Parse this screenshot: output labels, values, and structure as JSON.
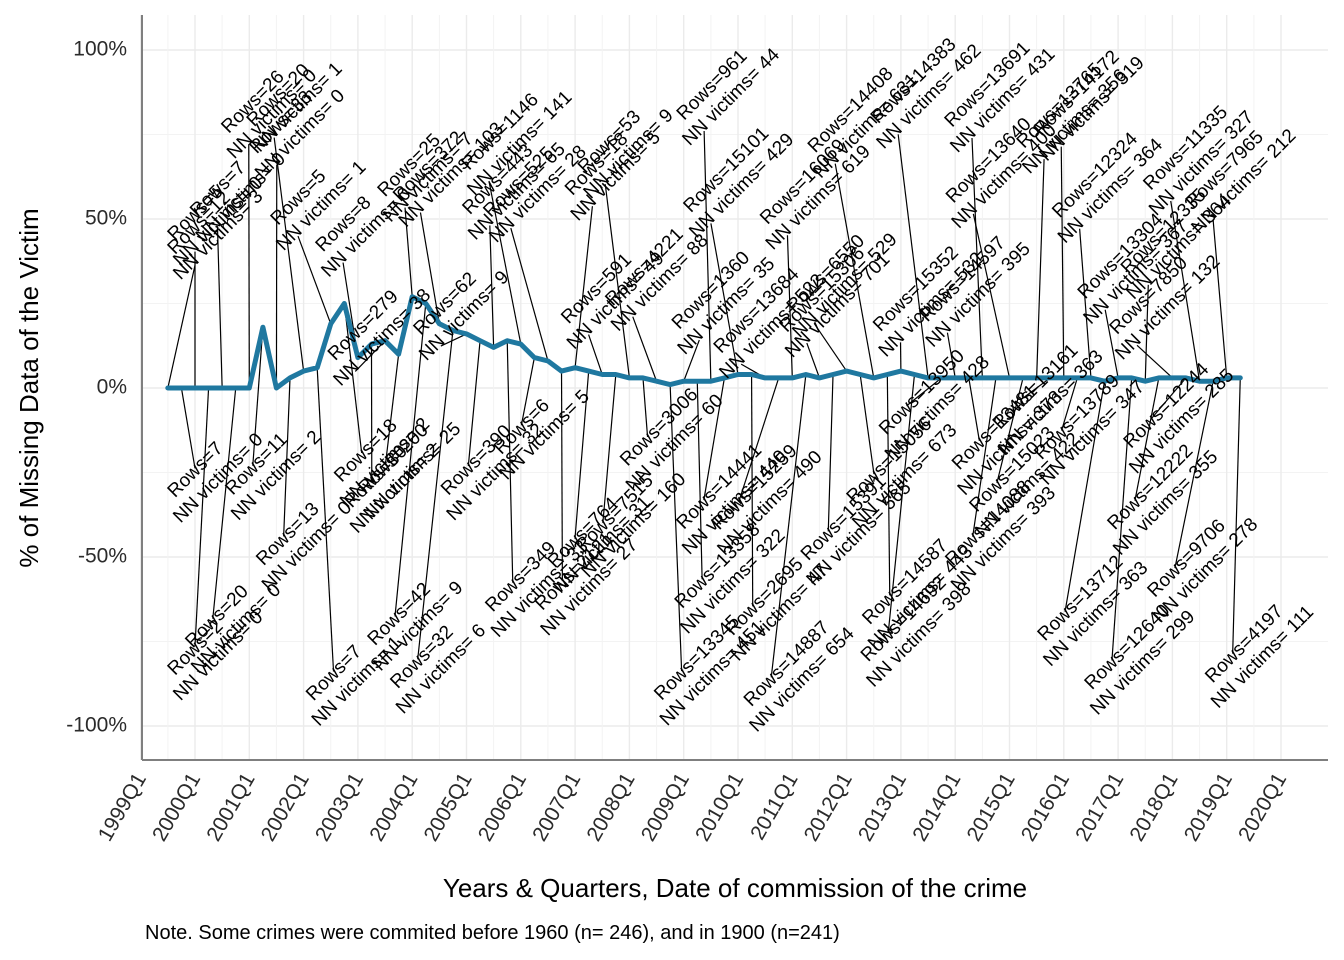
{
  "chart_data": {
    "type": "line",
    "title": "",
    "xlabel": "Years & Quarters, Date of commission of the crime",
    "ylabel": "% of Missing Data of the Victim",
    "note": "Note. Some crimes were commited before 1960 (n= 246), and in 1900 (n=241)",
    "y_ticks": [
      "100%",
      "50%",
      "0%",
      "-50%",
      "-100%"
    ],
    "y_tick_values": [
      100,
      50,
      0,
      -50,
      -100
    ],
    "ylim": [
      -110,
      110
    ],
    "x_tick_labels": [
      "1999Q1",
      "2000Q1",
      "2001Q1",
      "2002Q1",
      "2003Q1",
      "2004Q1",
      "2005Q1",
      "2006Q1",
      "2007Q1",
      "2008Q1",
      "2009Q1",
      "2010Q1",
      "2011Q1",
      "2012Q1",
      "2013Q1",
      "2014Q1",
      "2015Q1",
      "2016Q1",
      "2017Q1",
      "2018Q1",
      "2019Q1",
      "2020Q1"
    ],
    "xlim": [
      1998.75,
      2020.25
    ],
    "grid": true,
    "series": [
      {
        "color": "#1f78a0",
        "points": [
          {
            "x": 1999.5,
            "y": 0,
            "rows": "12",
            "nn": "3"
          },
          {
            "x": 1999.75,
            "y": 0,
            "rows": "7",
            "nn": "0"
          },
          {
            "x": 2000.0,
            "y": 0,
            "rows": "5",
            "nn": "0"
          },
          {
            "x": 2000.25,
            "y": 0,
            "rows": "2",
            "nn": "0"
          },
          {
            "x": 2000.5,
            "y": 0,
            "rows": "7",
            "nn": "0"
          },
          {
            "x": 2000.75,
            "y": 0,
            "rows": "20",
            "nn": "0"
          },
          {
            "x": 2001.0,
            "y": 0,
            "rows": "26",
            "nn": "0"
          },
          {
            "x": 2001.25,
            "y": 18,
            "rows": "11",
            "nn": "2"
          },
          {
            "x": 2001.5,
            "y": 0,
            "rows": "33",
            "nn": "0"
          },
          {
            "x": 2001.75,
            "y": 3,
            "rows": "13",
            "nn": "0"
          },
          {
            "x": 2002.0,
            "y": 5,
            "rows": "20",
            "nn": "1"
          },
          {
            "x": 2002.25,
            "y": 6,
            "rows": "7",
            "nn": "1"
          },
          {
            "x": 2002.5,
            "y": 19,
            "rows": "5",
            "nn": "1"
          },
          {
            "x": 2002.75,
            "y": 25,
            "rows": "18",
            "nn": "2"
          },
          {
            "x": 2003.0,
            "y": 9,
            "rows": "8",
            "nn": "0"
          },
          {
            "x": 2003.25,
            "y": 13,
            "rows": "30",
            "nn": "2"
          },
          {
            "x": 2003.5,
            "y": 14,
            "rows": "279",
            "nn": "38"
          },
          {
            "x": 2003.75,
            "y": 10,
            "rows": "200",
            "nn": "25"
          },
          {
            "x": 2004.0,
            "y": 27,
            "rows": "25",
            "nn": "7"
          },
          {
            "x": 2004.25,
            "y": 25,
            "rows": "42",
            "nn": "9"
          },
          {
            "x": 2004.5,
            "y": 19,
            "rows": "372",
            "nn": "103"
          },
          {
            "x": 2004.75,
            "y": 17,
            "rows": "32",
            "nn": "6"
          },
          {
            "x": 2005.0,
            "y": 16,
            "rows": "62",
            "nn": "9"
          },
          {
            "x": 2005.25,
            "y": 14,
            "rows": "390",
            "nn": "32"
          },
          {
            "x": 2005.5,
            "y": 12,
            "rows": "443",
            "nn": "65"
          },
          {
            "x": 2005.75,
            "y": 14,
            "rows": "349",
            "nn": "33"
          },
          {
            "x": 2006.0,
            "y": 13,
            "rows": "1146",
            "nn": "141"
          },
          {
            "x": 2006.25,
            "y": 9,
            "rows": "6",
            "nn": "5"
          },
          {
            "x": 2006.5,
            "y": 8,
            "rows": "525",
            "nn": "28"
          },
          {
            "x": 2006.75,
            "y": 5,
            "rows": "2121",
            "nn": "27"
          },
          {
            "x": 2007.0,
            "y": 6,
            "rows": "18",
            "nn": "5"
          },
          {
            "x": 2007.25,
            "y": 5,
            "rows": "764",
            "nn": "31"
          },
          {
            "x": 2007.5,
            "y": 4,
            "rows": "591",
            "nn": "49"
          },
          {
            "x": 2007.75,
            "y": 4,
            "rows": "7515",
            "nn": "160"
          },
          {
            "x": 2008.0,
            "y": 3,
            "rows": "53",
            "nn": "9"
          },
          {
            "x": 2008.25,
            "y": 3,
            "rows": "3006",
            "nn": "60"
          },
          {
            "x": 2008.5,
            "y": 2,
            "rows": "4221",
            "nn": "88"
          },
          {
            "x": 2008.75,
            "y": 1,
            "rows": "13345",
            "nn": "451"
          },
          {
            "x": 2009.0,
            "y": 2,
            "rows": "1360",
            "nn": "35"
          },
          {
            "x": 2009.25,
            "y": 2,
            "rows": "13358",
            "nn": "322"
          },
          {
            "x": 2009.5,
            "y": 2,
            "rows": "961",
            "nn": "44"
          },
          {
            "x": 2009.75,
            "y": 3,
            "rows": "14441",
            "nn": "440"
          },
          {
            "x": 2010.0,
            "y": 4,
            "rows": "15101",
            "nn": "429"
          },
          {
            "x": 2010.25,
            "y": 4,
            "rows": "2695",
            "nn": "47"
          },
          {
            "x": 2010.5,
            "y": 3,
            "rows": "13684",
            "nn": "522"
          },
          {
            "x": 2010.75,
            "y": 3,
            "rows": "15259",
            "nn": "490"
          },
          {
            "x": 2011.0,
            "y": 3,
            "rows": "16069",
            "nn": "619"
          },
          {
            "x": 2011.25,
            "y": 4,
            "rows": "14887",
            "nn": "654"
          },
          {
            "x": 2011.5,
            "y": 3,
            "rows": "15306",
            "nn": "701"
          },
          {
            "x": 2011.75,
            "y": 4,
            "rows": "15391",
            "nn": "565"
          },
          {
            "x": 2012.0,
            "y": 5,
            "rows": "6550",
            "nn": "529"
          },
          {
            "x": 2012.25,
            "y": 4,
            "rows": "15056",
            "nn": "673"
          },
          {
            "x": 2012.5,
            "y": 3,
            "rows": "14408",
            "nn": "631"
          },
          {
            "x": 2012.75,
            "y": 4,
            "rows": "14587",
            "nn": "443"
          },
          {
            "x": 2013.0,
            "y": 5,
            "rows": "15352",
            "nn": "532"
          },
          {
            "x": 2013.25,
            "y": 4,
            "rows": "14692",
            "nn": "398"
          },
          {
            "x": 2013.5,
            "y": 3,
            "rows": "14383",
            "nn": "462"
          },
          {
            "x": 2013.75,
            "y": 3,
            "rows": "13950",
            "nn": "428"
          },
          {
            "x": 2014.0,
            "y": 3,
            "rows": "14597",
            "nn": "395"
          },
          {
            "x": 2014.25,
            "y": 3,
            "rows": "13481",
            "nn": "373"
          },
          {
            "x": 2014.5,
            "y": 3,
            "rows": "13691",
            "nn": "431"
          },
          {
            "x": 2014.75,
            "y": 3,
            "rows": "14088",
            "nn": "393"
          },
          {
            "x": 2015.0,
            "y": 3,
            "rows": "13640",
            "nn": "400"
          },
          {
            "x": 2015.25,
            "y": 3,
            "rows": "15023",
            "nn": "422"
          },
          {
            "x": 2015.5,
            "y": 3,
            "rows": "13765",
            "nn": "356"
          },
          {
            "x": 2015.75,
            "y": 3,
            "rows": "13161",
            "nn": "363"
          },
          {
            "x": 2016.0,
            "y": 3,
            "rows": "14172",
            "nn": "319"
          },
          {
            "x": 2016.25,
            "y": 3,
            "rows": "13789",
            "nn": "347"
          },
          {
            "x": 2016.5,
            "y": 3,
            "rows": "12324",
            "nn": "364"
          },
          {
            "x": 2016.75,
            "y": 2,
            "rows": "13712",
            "nn": "363"
          },
          {
            "x": 2017.0,
            "y": 3,
            "rows": "13304",
            "nn": "367"
          },
          {
            "x": 2017.25,
            "y": 3,
            "rows": "12640",
            "nn": "299"
          },
          {
            "x": 2017.5,
            "y": 2,
            "rows": "12335",
            "nn": "364"
          },
          {
            "x": 2017.75,
            "y": 3,
            "rows": "12222",
            "nn": "355"
          },
          {
            "x": 2018.0,
            "y": 3,
            "rows": "7850",
            "nn": "132"
          },
          {
            "x": 2018.25,
            "y": 3,
            "rows": "12244",
            "nn": "285"
          },
          {
            "x": 2018.5,
            "y": 2,
            "rows": "11335",
            "nn": "327"
          },
          {
            "x": 2018.75,
            "y": 2,
            "rows": "9706",
            "nn": "278"
          },
          {
            "x": 2019.0,
            "y": 3,
            "rows": "7965",
            "nn": "212"
          },
          {
            "x": 2019.25,
            "y": 3,
            "rows": "4197",
            "nn": "111"
          }
        ]
      }
    ],
    "annotation_prefix_rows": "Rows=",
    "annotation_prefix_nn": "NN victims= "
  }
}
